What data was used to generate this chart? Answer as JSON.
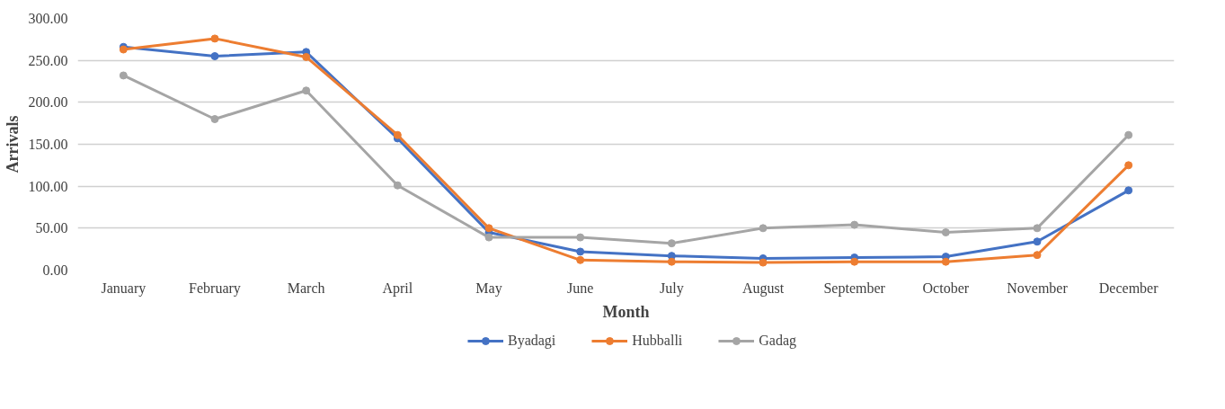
{
  "chart_data": {
    "type": "line",
    "xlabel": "Month",
    "ylabel": "Arrivals",
    "categories": [
      "January",
      "February",
      "March",
      "April",
      "May",
      "June",
      "July",
      "August",
      "September",
      "October",
      "November",
      "December"
    ],
    "series": [
      {
        "name": "Byadagi",
        "color": "#4472c4",
        "values": [
          266,
          255,
          260,
          157,
          45,
          22,
          17,
          14,
          15,
          16,
          34,
          95
        ]
      },
      {
        "name": "Hubballi",
        "color": "#ed7d31",
        "values": [
          263,
          276,
          254,
          161,
          50,
          12,
          10,
          9,
          10,
          10,
          18,
          125
        ]
      },
      {
        "name": "Gadag",
        "color": "#a5a5a5",
        "values": [
          232,
          180,
          214,
          101,
          39,
          39,
          32,
          50,
          54,
          45,
          50,
          161
        ]
      }
    ],
    "ylim": [
      0,
      300
    ],
    "yticks": [
      {
        "value": 0,
        "label": "0.00"
      },
      {
        "value": 50,
        "label": "50.00"
      },
      {
        "value": 100,
        "label": "100.00"
      },
      {
        "value": 150,
        "label": "150.00"
      },
      {
        "value": 200,
        "label": "200.00"
      },
      {
        "value": 250,
        "label": "250.00"
      },
      {
        "value": 300,
        "label": "300.00"
      }
    ],
    "grid": "y",
    "legend": "bottom",
    "marker": "circle",
    "line_style": "solid"
  }
}
